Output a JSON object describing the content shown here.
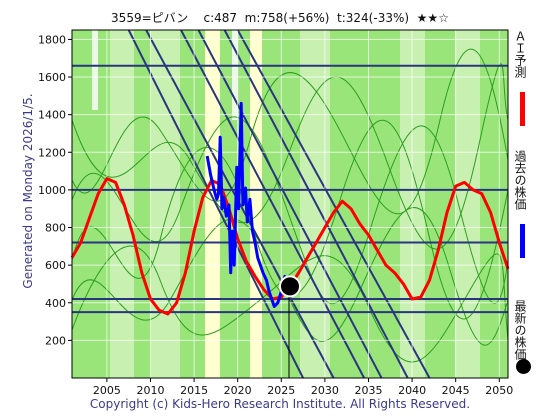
{
  "header": {
    "title": "3559=ピバン    c:487  m:758(+56%)  t:324(-33%)  ★★☆"
  },
  "side_note": "Generated on Monday 2026/1/5.",
  "footer": "Copyright (c) Kids-Hero Research Institute. All Rights Reserved.",
  "legend": {
    "ai_label": "ＡＩ予測",
    "past_label": "過去の株価",
    "latest_label": "最新の株価",
    "ai_color": "#ff0000",
    "past_color": "#0000ff",
    "latest_color": "#000000"
  },
  "chart_data": {
    "type": "line",
    "xlim": [
      2001,
      2051
    ],
    "ylim": [
      0,
      1850
    ],
    "x_ticks": [
      2005,
      2010,
      2015,
      2020,
      2025,
      2030,
      2035,
      2040,
      2045,
      2050
    ],
    "y_ticks": [
      200,
      400,
      600,
      800,
      1000,
      1200,
      1400,
      1600,
      1800
    ],
    "hlines": [
      1660,
      1000,
      720,
      420,
      350
    ],
    "latest_point": {
      "x": 2026.0,
      "y": 487
    },
    "series": [
      {
        "key": "ai",
        "color": "#ff0000",
        "points": [
          [
            2001,
            640
          ],
          [
            2002,
            720
          ],
          [
            2003,
            850
          ],
          [
            2004,
            980
          ],
          [
            2005,
            1060
          ],
          [
            2006,
            1040
          ],
          [
            2007,
            920
          ],
          [
            2008,
            760
          ],
          [
            2009,
            560
          ],
          [
            2010,
            420
          ],
          [
            2011,
            360
          ],
          [
            2012,
            340
          ],
          [
            2013,
            400
          ],
          [
            2014,
            560
          ],
          [
            2015,
            780
          ],
          [
            2016,
            960
          ],
          [
            2017,
            1050
          ],
          [
            2018,
            1030
          ],
          [
            2019,
            900
          ],
          [
            2020,
            740
          ],
          [
            2021,
            620
          ],
          [
            2022,
            540
          ],
          [
            2023,
            470
          ],
          [
            2024,
            420
          ],
          [
            2025,
            430
          ],
          [
            2026,
            487
          ],
          [
            2027,
            560
          ],
          [
            2028,
            640
          ],
          [
            2029,
            720
          ],
          [
            2030,
            800
          ],
          [
            2031,
            880
          ],
          [
            2032,
            940
          ],
          [
            2033,
            900
          ],
          [
            2034,
            820
          ],
          [
            2035,
            760
          ],
          [
            2036,
            680
          ],
          [
            2037,
            600
          ],
          [
            2038,
            560
          ],
          [
            2039,
            500
          ],
          [
            2040,
            420
          ],
          [
            2041,
            430
          ],
          [
            2042,
            520
          ],
          [
            2043,
            680
          ],
          [
            2044,
            880
          ],
          [
            2045,
            1020
          ],
          [
            2046,
            1040
          ],
          [
            2047,
            1000
          ],
          [
            2048,
            980
          ],
          [
            2049,
            880
          ],
          [
            2050,
            720
          ],
          [
            2051,
            580
          ]
        ]
      },
      {
        "key": "past",
        "color": "#0000ff",
        "points": [
          [
            2016.5,
            1180
          ],
          [
            2016.9,
            1080
          ],
          [
            2017.3,
            1000
          ],
          [
            2017.6,
            950
          ],
          [
            2017.8,
            980
          ],
          [
            2018.0,
            1280
          ],
          [
            2018.2,
            900
          ],
          [
            2018.4,
            960
          ],
          [
            2018.7,
            860
          ],
          [
            2019.0,
            920
          ],
          [
            2019.2,
            560
          ],
          [
            2019.4,
            780
          ],
          [
            2019.6,
            600
          ],
          [
            2019.9,
            1120
          ],
          [
            2020.1,
            900
          ],
          [
            2020.4,
            1460
          ],
          [
            2020.6,
            920
          ],
          [
            2020.9,
            1010
          ],
          [
            2021.1,
            830
          ],
          [
            2021.4,
            950
          ],
          [
            2021.7,
            780
          ],
          [
            2022.0,
            720
          ],
          [
            2022.3,
            640
          ],
          [
            2022.6,
            600
          ],
          [
            2022.9,
            560
          ],
          [
            2023.3,
            520
          ],
          [
            2023.6,
            460
          ],
          [
            2023.9,
            420
          ],
          [
            2024.2,
            380
          ],
          [
            2024.6,
            400
          ],
          [
            2025.0,
            460
          ],
          [
            2025.4,
            540
          ],
          [
            2025.7,
            500
          ],
          [
            2026.0,
            487
          ]
        ]
      }
    ]
  }
}
